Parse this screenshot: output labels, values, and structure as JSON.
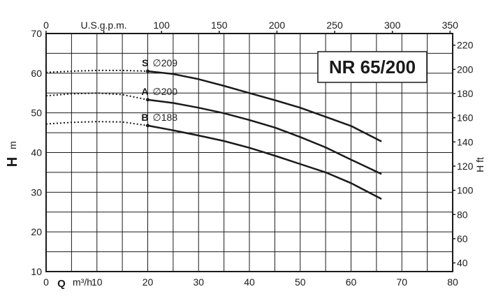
{
  "chart_data": {
    "type": "line",
    "title": "NR 65/200",
    "x_axis_bottom": {
      "label_symbol": "Q",
      "label_unit": "m³/h",
      "range": [
        0,
        80
      ],
      "ticks": [
        "0",
        "10",
        "20",
        "30",
        "40",
        "50",
        "60",
        "70",
        "80"
      ]
    },
    "x_axis_top": {
      "label": "U.S.g.p.m.",
      "ticks": [
        "0",
        "50",
        "100",
        "150",
        "200",
        "250",
        "300",
        "350"
      ],
      "tick_values": [
        0,
        50,
        100,
        150,
        200,
        250,
        300,
        350
      ]
    },
    "y_axis_left": {
      "label_symbol": "H",
      "label_unit": "m",
      "range": [
        10,
        70
      ],
      "ticks": [
        "10",
        "20",
        "30",
        "40",
        "50",
        "60",
        "70"
      ]
    },
    "y_axis_right": {
      "label": "H ft",
      "ticks": [
        "40",
        "60",
        "80",
        "100",
        "120",
        "140",
        "160",
        "180",
        "200",
        "220"
      ],
      "tick_values": [
        40,
        60,
        80,
        100,
        120,
        140,
        160,
        180,
        200,
        220
      ]
    },
    "grid": true,
    "series": [
      {
        "name": "S",
        "diameter": "209",
        "dashed": [
          [
            0,
            60.2
          ],
          [
            5,
            60.5
          ],
          [
            10,
            60.7
          ],
          [
            15,
            60.7
          ],
          [
            20,
            60.5
          ]
        ],
        "values": [
          [
            20,
            60.5
          ],
          [
            25,
            59.8
          ],
          [
            30,
            58.5
          ],
          [
            35,
            56.8
          ],
          [
            40,
            55.0
          ],
          [
            45,
            53.2
          ],
          [
            50,
            51.3
          ],
          [
            55,
            49.0
          ],
          [
            60,
            46.7
          ],
          [
            66,
            42.8
          ]
        ]
      },
      {
        "name": "A",
        "diameter": "200",
        "dashed": [
          [
            0,
            54.3
          ],
          [
            5,
            54.8
          ],
          [
            10,
            55.0
          ],
          [
            15,
            54.6
          ],
          [
            20,
            53.3
          ]
        ],
        "values": [
          [
            20,
            53.3
          ],
          [
            25,
            52.5
          ],
          [
            30,
            51.3
          ],
          [
            35,
            49.9
          ],
          [
            40,
            48.2
          ],
          [
            45,
            46.3
          ],
          [
            50,
            43.9
          ],
          [
            55,
            41.3
          ],
          [
            60,
            38.2
          ],
          [
            66,
            34.6
          ]
        ]
      },
      {
        "name": "B",
        "diameter": "188",
        "dashed": [
          [
            0,
            47.2
          ],
          [
            5,
            47.6
          ],
          [
            10,
            47.8
          ],
          [
            15,
            47.7
          ],
          [
            20,
            46.8
          ]
        ],
        "values": [
          [
            20,
            46.8
          ],
          [
            25,
            45.6
          ],
          [
            30,
            44.3
          ],
          [
            35,
            42.9
          ],
          [
            40,
            41.2
          ],
          [
            45,
            39.2
          ],
          [
            50,
            37.1
          ],
          [
            55,
            35.0
          ],
          [
            60,
            32.3
          ],
          [
            66,
            28.3
          ]
        ]
      }
    ],
    "diameter_symbol": "∅"
  }
}
